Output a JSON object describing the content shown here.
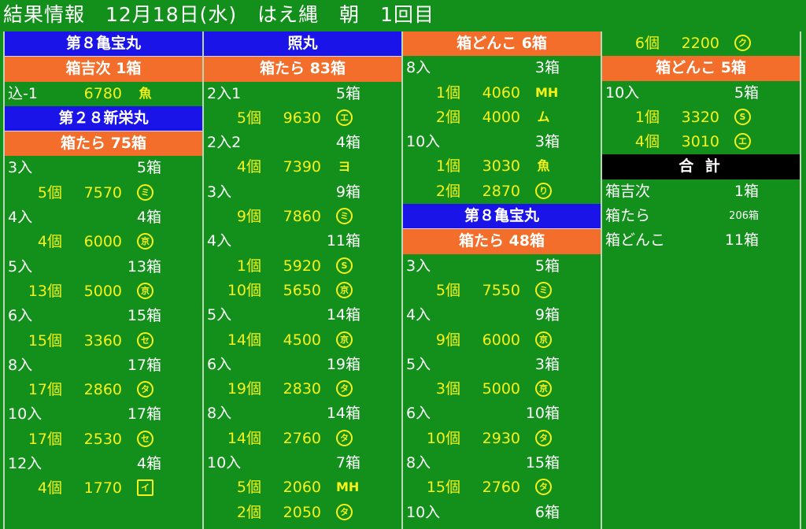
{
  "title": "結果情報　12月18日(水)　はえ縄　朝　1回目",
  "columns": [
    {
      "rows": [
        {
          "type": "boat",
          "label": "第８亀宝丸"
        },
        {
          "type": "orange",
          "label": "箱吉次 1箱"
        },
        {
          "type": "price",
          "label": "込-1",
          "price": "6780",
          "mark": "魚",
          "mark_style": "nb",
          "q_as_label": true
        },
        {
          "type": "boat",
          "label": "第２８新栄丸"
        },
        {
          "type": "orange",
          "label": "箱たら 75箱"
        },
        {
          "type": "cat",
          "label": "3入",
          "boxes": "5箱"
        },
        {
          "type": "price",
          "qty": "5個",
          "price": "7570",
          "mark": "ミ"
        },
        {
          "type": "cat",
          "label": "4入",
          "boxes": "4箱"
        },
        {
          "type": "price",
          "qty": "4個",
          "price": "6000",
          "mark": "京"
        },
        {
          "type": "cat",
          "label": "5入",
          "boxes": "13箱"
        },
        {
          "type": "price",
          "qty": "13個",
          "price": "5000",
          "mark": "京"
        },
        {
          "type": "cat",
          "label": "6入",
          "boxes": "15箱"
        },
        {
          "type": "price",
          "qty": "15個",
          "price": "3360",
          "mark": "セ"
        },
        {
          "type": "cat",
          "label": "8入",
          "boxes": "17箱"
        },
        {
          "type": "price",
          "qty": "17個",
          "price": "2860",
          "mark": "タ"
        },
        {
          "type": "cat",
          "label": "10入",
          "boxes": "17箱"
        },
        {
          "type": "price",
          "qty": "17個",
          "price": "2530",
          "mark": "セ"
        },
        {
          "type": "cat",
          "label": "12入",
          "boxes": "4箱"
        },
        {
          "type": "price",
          "qty": "4個",
          "price": "1770",
          "mark": "イ",
          "mark_style": "sq"
        }
      ]
    },
    {
      "rows": [
        {
          "type": "boat",
          "label": "照丸"
        },
        {
          "type": "orange",
          "label": "箱たら 83箱"
        },
        {
          "type": "cat",
          "label": "2入1",
          "boxes": "5箱"
        },
        {
          "type": "price",
          "qty": "5個",
          "price": "9630",
          "mark": "エ"
        },
        {
          "type": "cat",
          "label": "2入2",
          "boxes": "4箱"
        },
        {
          "type": "price",
          "qty": "4個",
          "price": "7390",
          "mark": "ヨ",
          "mark_style": "nb"
        },
        {
          "type": "cat",
          "label": "3入",
          "boxes": "9箱"
        },
        {
          "type": "price",
          "qty": "9個",
          "price": "7860",
          "mark": "ミ"
        },
        {
          "type": "cat",
          "label": "4入",
          "boxes": "11箱"
        },
        {
          "type": "price",
          "qty": "1個",
          "price": "5920",
          "mark": "S"
        },
        {
          "type": "price",
          "qty": "10個",
          "price": "5650",
          "mark": "京"
        },
        {
          "type": "cat",
          "label": "5入",
          "boxes": "14箱"
        },
        {
          "type": "price",
          "qty": "14個",
          "price": "4500",
          "mark": "京"
        },
        {
          "type": "cat",
          "label": "6入",
          "boxes": "19箱"
        },
        {
          "type": "price",
          "qty": "19個",
          "price": "2830",
          "mark": "タ"
        },
        {
          "type": "cat",
          "label": "8入",
          "boxes": "14箱"
        },
        {
          "type": "price",
          "qty": "14個",
          "price": "2760",
          "mark": "タ"
        },
        {
          "type": "cat",
          "label": "10入",
          "boxes": "7箱"
        },
        {
          "type": "price",
          "qty": "5個",
          "price": "2060",
          "mark": "MH",
          "mark_style": "nb"
        },
        {
          "type": "price",
          "qty": "2個",
          "price": "2050",
          "mark": "タ"
        }
      ]
    },
    {
      "rows": [
        {
          "type": "orange",
          "label": "箱どんこ 6箱"
        },
        {
          "type": "cat",
          "label": "8入",
          "boxes": "3箱"
        },
        {
          "type": "price",
          "qty": "1個",
          "price": "4060",
          "mark": "MH",
          "mark_style": "nb"
        },
        {
          "type": "price",
          "qty": "2個",
          "price": "4000",
          "mark": "ム",
          "mark_style": "nb"
        },
        {
          "type": "cat",
          "label": "10入",
          "boxes": "3箱"
        },
        {
          "type": "price",
          "qty": "1個",
          "price": "3030",
          "mark": "魚",
          "mark_style": "nb"
        },
        {
          "type": "price",
          "qty": "2個",
          "price": "2870",
          "mark": "り"
        },
        {
          "type": "boat",
          "label": "第８亀宝丸"
        },
        {
          "type": "orange",
          "label": "箱たら 48箱"
        },
        {
          "type": "cat",
          "label": "3入",
          "boxes": "5箱"
        },
        {
          "type": "price",
          "qty": "5個",
          "price": "7550",
          "mark": "ミ"
        },
        {
          "type": "cat",
          "label": "4入",
          "boxes": "9箱"
        },
        {
          "type": "price",
          "qty": "9個",
          "price": "6000",
          "mark": "京"
        },
        {
          "type": "cat",
          "label": "5入",
          "boxes": "3箱"
        },
        {
          "type": "price",
          "qty": "3個",
          "price": "5000",
          "mark": "京"
        },
        {
          "type": "cat",
          "label": "6入",
          "boxes": "10箱"
        },
        {
          "type": "price",
          "qty": "10個",
          "price": "2930",
          "mark": "タ"
        },
        {
          "type": "cat",
          "label": "8入",
          "boxes": "15箱"
        },
        {
          "type": "price",
          "qty": "15個",
          "price": "2760",
          "mark": "タ"
        },
        {
          "type": "cat",
          "label": "10入",
          "boxes": "6箱"
        }
      ]
    },
    {
      "rows": [
        {
          "type": "price",
          "qty": "6個",
          "price": "2200",
          "mark": "ク"
        },
        {
          "type": "orange",
          "label": "箱どんこ 5箱"
        },
        {
          "type": "cat",
          "label": "10入",
          "boxes": "5箱"
        },
        {
          "type": "price",
          "qty": "1個",
          "price": "3320",
          "mark": "S"
        },
        {
          "type": "price",
          "qty": "4個",
          "price": "3010",
          "mark": "エ"
        },
        {
          "type": "black",
          "label": "合 計"
        },
        {
          "type": "sum",
          "label": "箱吉次",
          "value": "1箱"
        },
        {
          "type": "sum",
          "label": "箱たら",
          "value": "206箱",
          "small": true
        },
        {
          "type": "sum",
          "label": "箱どんこ",
          "value": "11箱"
        }
      ]
    }
  ]
}
